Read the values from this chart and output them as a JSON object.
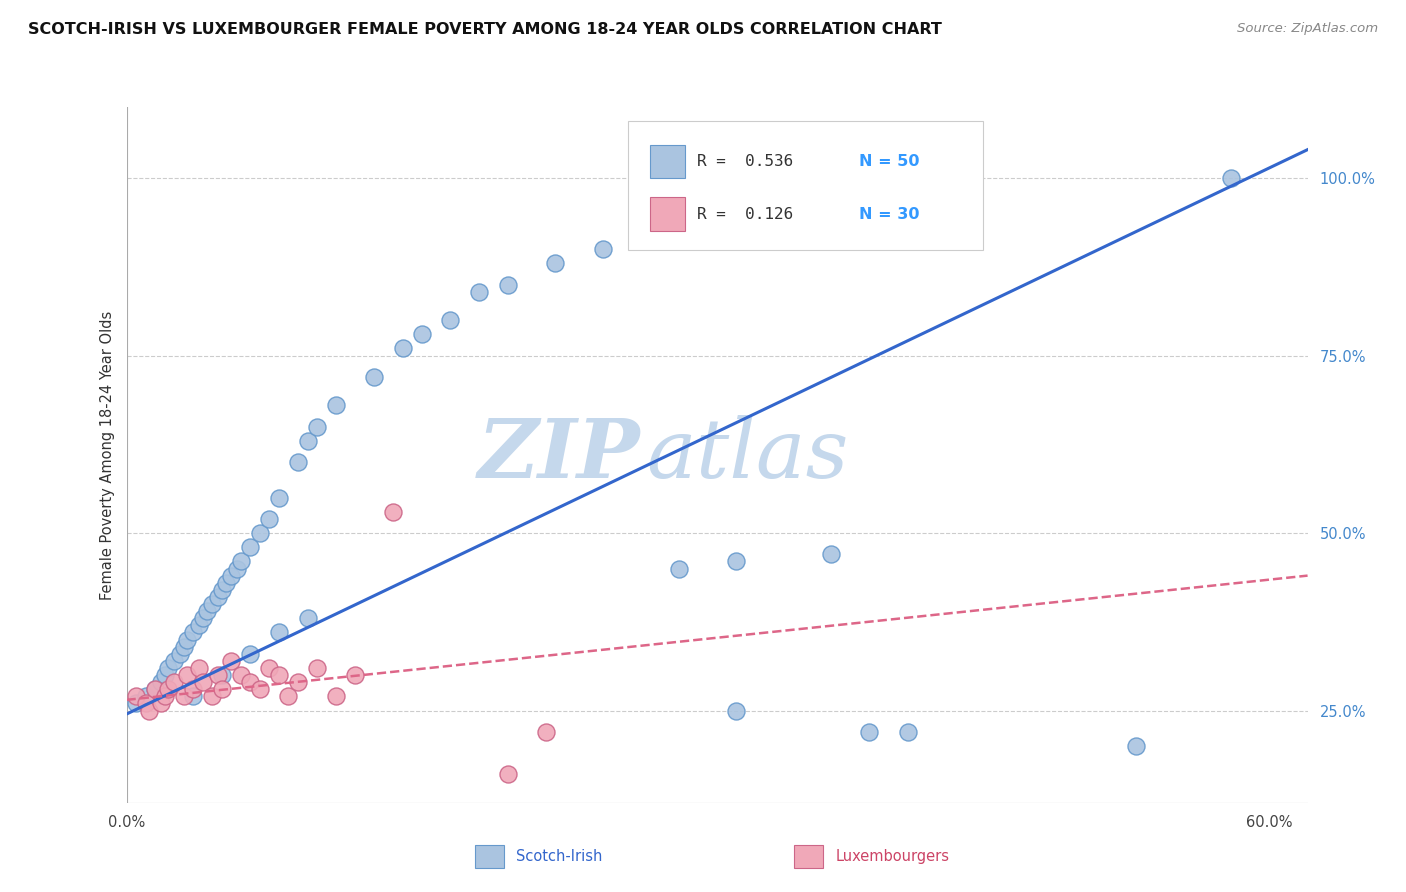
{
  "title": "SCOTCH-IRISH VS LUXEMBOURGER FEMALE POVERTY AMONG 18-24 YEAR OLDS CORRELATION CHART",
  "source": "Source: ZipAtlas.com",
  "ylabel": "Female Poverty Among 18-24 Year Olds",
  "xlim": [
    0.0,
    0.62
  ],
  "ylim": [
    0.12,
    1.1
  ],
  "yticks_right": [
    0.25,
    0.5,
    0.75,
    1.0
  ],
  "yticklabels_right": [
    "25.0%",
    "50.0%",
    "75.0%",
    "100.0%"
  ],
  "background_color": "#ffffff",
  "grid_color": "#cccccc",
  "watermark_zip": "ZIP",
  "watermark_atlas": "atlas",
  "watermark_color_zip": "#c5d8ec",
  "watermark_color_atlas": "#c5d8ec",
  "scotch_irish_color": "#aac4e0",
  "scotch_irish_edge": "#6699cc",
  "luxembourger_color": "#f0a8b8",
  "luxembourger_edge": "#cc6688",
  "trendline_scotch_color": "#3366cc",
  "trendline_lux_color": "#dd6688",
  "legend_R_color": "#333333",
  "legend_N_color": "#3399ff",
  "legend_R_scotch": "R =  0.536",
  "legend_N_scotch": "N = 50",
  "legend_R_lux": "R =  0.126",
  "legend_N_lux": "N = 30",
  "scotch_irish_x": [
    0.005,
    0.01,
    0.015,
    0.018,
    0.02,
    0.022,
    0.025,
    0.028,
    0.03,
    0.032,
    0.035,
    0.038,
    0.04,
    0.042,
    0.045,
    0.048,
    0.05,
    0.052,
    0.055,
    0.058,
    0.06,
    0.065,
    0.07,
    0.075,
    0.08,
    0.09,
    0.095,
    0.1,
    0.11,
    0.13,
    0.145,
    0.155,
    0.17,
    0.185,
    0.2,
    0.225,
    0.25,
    0.29,
    0.32,
    0.37,
    0.39,
    0.41,
    0.035,
    0.05,
    0.065,
    0.08,
    0.095,
    0.32,
    0.53,
    0.58
  ],
  "scotch_irish_y": [
    0.26,
    0.27,
    0.28,
    0.29,
    0.3,
    0.31,
    0.32,
    0.33,
    0.34,
    0.35,
    0.36,
    0.37,
    0.38,
    0.39,
    0.4,
    0.41,
    0.42,
    0.43,
    0.44,
    0.45,
    0.46,
    0.48,
    0.5,
    0.52,
    0.55,
    0.6,
    0.63,
    0.65,
    0.68,
    0.72,
    0.76,
    0.78,
    0.8,
    0.84,
    0.85,
    0.88,
    0.9,
    0.45,
    0.46,
    0.47,
    0.22,
    0.22,
    0.27,
    0.3,
    0.33,
    0.36,
    0.38,
    0.25,
    0.2,
    1.0
  ],
  "luxembourger_x": [
    0.005,
    0.01,
    0.012,
    0.015,
    0.018,
    0.02,
    0.022,
    0.025,
    0.03,
    0.032,
    0.035,
    0.038,
    0.04,
    0.045,
    0.048,
    0.05,
    0.055,
    0.06,
    0.065,
    0.07,
    0.075,
    0.08,
    0.085,
    0.09,
    0.1,
    0.11,
    0.12,
    0.14,
    0.2,
    0.22
  ],
  "luxembourger_y": [
    0.27,
    0.26,
    0.25,
    0.28,
    0.26,
    0.27,
    0.28,
    0.29,
    0.27,
    0.3,
    0.28,
    0.31,
    0.29,
    0.27,
    0.3,
    0.28,
    0.32,
    0.3,
    0.29,
    0.28,
    0.31,
    0.3,
    0.27,
    0.29,
    0.31,
    0.27,
    0.3,
    0.53,
    0.16,
    0.22
  ],
  "scotch_trend_x": [
    0.0,
    0.62
  ],
  "scotch_trend_y": [
    0.245,
    1.04
  ],
  "lux_trend_x": [
    0.0,
    0.62
  ],
  "lux_trend_y": [
    0.265,
    0.44
  ]
}
